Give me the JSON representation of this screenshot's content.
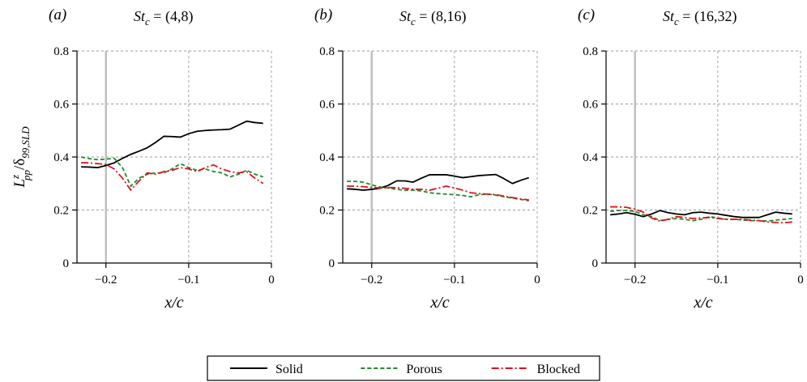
{
  "ylabel": "L^z_pp/δ99,SLD",
  "chart_data": [
    {
      "type": "line",
      "panel_label": "(a)",
      "title": {
        "prefix": "St",
        "sub": "c",
        "suffix": " = (4,8)"
      },
      "xlabel": "x/c",
      "xlim": [
        -0.235,
        0
      ],
      "ylim": [
        0,
        0.8
      ],
      "xticks": [
        -0.2,
        -0.1,
        0
      ],
      "xtick_labels": [
        "−0.2",
        "−0.1",
        "0"
      ],
      "yticks": [
        0,
        0.2,
        0.4,
        0.6,
        0.8
      ],
      "ytick_labels": [
        "0",
        "0.2",
        "0.4",
        "0.6",
        "0.8"
      ],
      "grid": true,
      "vertical_marker_x": -0.2,
      "series": [
        {
          "name": "Solid",
          "color": "#000000",
          "dash": "solid",
          "x": [
            -0.23,
            -0.22,
            -0.21,
            -0.2,
            -0.19,
            -0.18,
            -0.17,
            -0.16,
            -0.15,
            -0.14,
            -0.13,
            -0.12,
            -0.11,
            -0.1,
            -0.09,
            -0.08,
            -0.07,
            -0.06,
            -0.05,
            -0.04,
            -0.03,
            -0.02,
            -0.01
          ],
          "y": [
            0.363,
            0.362,
            0.36,
            0.368,
            0.378,
            0.395,
            0.41,
            0.422,
            0.435,
            0.455,
            0.478,
            0.477,
            0.475,
            0.488,
            0.497,
            0.5,
            0.502,
            0.503,
            0.505,
            0.52,
            0.535,
            0.53,
            0.527
          ]
        },
        {
          "name": "Porous",
          "color": "#1f8a2b",
          "dash": "dashed",
          "x": [
            -0.23,
            -0.22,
            -0.21,
            -0.2,
            -0.19,
            -0.18,
            -0.17,
            -0.16,
            -0.15,
            -0.14,
            -0.13,
            -0.12,
            -0.11,
            -0.1,
            -0.09,
            -0.08,
            -0.07,
            -0.06,
            -0.05,
            -0.04,
            -0.03,
            -0.02,
            -0.01
          ],
          "y": [
            0.4,
            0.394,
            0.39,
            0.392,
            0.395,
            0.36,
            0.29,
            0.32,
            0.335,
            0.34,
            0.34,
            0.355,
            0.375,
            0.36,
            0.35,
            0.355,
            0.345,
            0.34,
            0.325,
            0.335,
            0.35,
            0.335,
            0.325
          ]
        },
        {
          "name": "Blocked",
          "color": "#e0121b",
          "dash": "dashdot",
          "x": [
            -0.23,
            -0.22,
            -0.21,
            -0.2,
            -0.19,
            -0.18,
            -0.17,
            -0.16,
            -0.15,
            -0.14,
            -0.13,
            -0.12,
            -0.11,
            -0.1,
            -0.09,
            -0.08,
            -0.07,
            -0.06,
            -0.05,
            -0.04,
            -0.03,
            -0.02,
            -0.01
          ],
          "y": [
            0.378,
            0.378,
            0.375,
            0.372,
            0.355,
            0.32,
            0.275,
            0.31,
            0.34,
            0.335,
            0.345,
            0.35,
            0.36,
            0.355,
            0.345,
            0.36,
            0.37,
            0.355,
            0.345,
            0.34,
            0.345,
            0.32,
            0.3
          ]
        }
      ]
    },
    {
      "type": "line",
      "panel_label": "(b)",
      "title": {
        "prefix": "St",
        "sub": "c",
        "suffix": " = (8,16)"
      },
      "xlabel": "x/c",
      "xlim": [
        -0.235,
        0
      ],
      "ylim": [
        0,
        0.8
      ],
      "xticks": [
        -0.2,
        -0.1,
        0
      ],
      "xtick_labels": [
        "−0.2",
        "−0.1",
        "0"
      ],
      "yticks": [
        0,
        0.2,
        0.4,
        0.6,
        0.8
      ],
      "ytick_labels": [
        "0",
        "0.2",
        "0.4",
        "0.6",
        "0.8"
      ],
      "grid": true,
      "vertical_marker_x": -0.2,
      "series": [
        {
          "name": "Solid",
          "color": "#000000",
          "dash": "solid",
          "x": [
            -0.23,
            -0.22,
            -0.21,
            -0.2,
            -0.19,
            -0.18,
            -0.17,
            -0.16,
            -0.15,
            -0.14,
            -0.13,
            -0.12,
            -0.11,
            -0.1,
            -0.09,
            -0.08,
            -0.07,
            -0.06,
            -0.05,
            -0.04,
            -0.03,
            -0.02,
            -0.01
          ],
          "y": [
            0.28,
            0.278,
            0.275,
            0.278,
            0.282,
            0.293,
            0.31,
            0.31,
            0.305,
            0.32,
            0.333,
            0.333,
            0.333,
            0.328,
            0.322,
            0.326,
            0.33,
            0.332,
            0.334,
            0.318,
            0.3,
            0.312,
            0.322
          ]
        },
        {
          "name": "Porous",
          "color": "#1f8a2b",
          "dash": "dashed",
          "x": [
            -0.23,
            -0.22,
            -0.21,
            -0.2,
            -0.19,
            -0.18,
            -0.17,
            -0.16,
            -0.15,
            -0.14,
            -0.13,
            -0.12,
            -0.11,
            -0.1,
            -0.09,
            -0.08,
            -0.07,
            -0.06,
            -0.05,
            -0.04,
            -0.03,
            -0.02,
            -0.01
          ],
          "y": [
            0.308,
            0.308,
            0.305,
            0.295,
            0.287,
            0.283,
            0.278,
            0.275,
            0.275,
            0.272,
            0.265,
            0.262,
            0.26,
            0.258,
            0.255,
            0.25,
            0.258,
            0.26,
            0.256,
            0.25,
            0.245,
            0.24,
            0.235
          ]
        },
        {
          "name": "Blocked",
          "color": "#e0121b",
          "dash": "dashdot",
          "x": [
            -0.23,
            -0.22,
            -0.21,
            -0.2,
            -0.19,
            -0.18,
            -0.17,
            -0.16,
            -0.15,
            -0.14,
            -0.13,
            -0.12,
            -0.11,
            -0.1,
            -0.09,
            -0.08,
            -0.07,
            -0.06,
            -0.05,
            -0.04,
            -0.03,
            -0.02,
            -0.01
          ],
          "y": [
            0.29,
            0.29,
            0.288,
            0.285,
            0.283,
            0.285,
            0.284,
            0.282,
            0.278,
            0.278,
            0.275,
            0.282,
            0.29,
            0.283,
            0.275,
            0.265,
            0.262,
            0.26,
            0.258,
            0.252,
            0.247,
            0.242,
            0.238
          ]
        }
      ]
    },
    {
      "type": "line",
      "panel_label": "(c)",
      "title": {
        "prefix": "St",
        "sub": "c",
        "suffix": " = (16,32)"
      },
      "xlabel": "x/c",
      "xlim": [
        -0.235,
        0
      ],
      "ylim": [
        0,
        0.8
      ],
      "xticks": [
        -0.2,
        -0.1,
        0
      ],
      "xtick_labels": [
        "−0.2",
        "−0.1",
        "0"
      ],
      "yticks": [
        0,
        0.2,
        0.4,
        0.6,
        0.8
      ],
      "ytick_labels": [
        "0",
        "0.2",
        "0.4",
        "0.6",
        "0.8"
      ],
      "grid": true,
      "vertical_marker_x": -0.2,
      "series": [
        {
          "name": "Solid",
          "color": "#000000",
          "dash": "solid",
          "x": [
            -0.23,
            -0.22,
            -0.21,
            -0.2,
            -0.19,
            -0.18,
            -0.17,
            -0.16,
            -0.15,
            -0.14,
            -0.13,
            -0.12,
            -0.11,
            -0.1,
            -0.09,
            -0.08,
            -0.07,
            -0.06,
            -0.05,
            -0.04,
            -0.03,
            -0.02,
            -0.01
          ],
          "y": [
            0.182,
            0.185,
            0.19,
            0.184,
            0.175,
            0.185,
            0.198,
            0.19,
            0.185,
            0.182,
            0.19,
            0.192,
            0.188,
            0.185,
            0.18,
            0.175,
            0.172,
            0.172,
            0.172,
            0.182,
            0.192,
            0.188,
            0.185
          ]
        },
        {
          "name": "Porous",
          "color": "#1f8a2b",
          "dash": "dashed",
          "x": [
            -0.23,
            -0.22,
            -0.21,
            -0.2,
            -0.19,
            -0.18,
            -0.17,
            -0.16,
            -0.15,
            -0.14,
            -0.13,
            -0.12,
            -0.11,
            -0.1,
            -0.09,
            -0.08,
            -0.07,
            -0.06,
            -0.05,
            -0.04,
            -0.03,
            -0.02,
            -0.01
          ],
          "y": [
            0.195,
            0.198,
            0.198,
            0.195,
            0.182,
            0.175,
            0.16,
            0.165,
            0.168,
            0.165,
            0.16,
            0.165,
            0.175,
            0.17,
            0.165,
            0.165,
            0.162,
            0.16,
            0.16,
            0.158,
            0.162,
            0.165,
            0.168
          ]
        },
        {
          "name": "Blocked",
          "color": "#e0121b",
          "dash": "dashdot",
          "x": [
            -0.23,
            -0.22,
            -0.21,
            -0.2,
            -0.19,
            -0.18,
            -0.17,
            -0.16,
            -0.15,
            -0.14,
            -0.13,
            -0.12,
            -0.11,
            -0.1,
            -0.09,
            -0.08,
            -0.07,
            -0.06,
            -0.05,
            -0.04,
            -0.03,
            -0.02,
            -0.01
          ],
          "y": [
            0.212,
            0.212,
            0.21,
            0.203,
            0.192,
            0.17,
            0.158,
            0.165,
            0.175,
            0.172,
            0.168,
            0.17,
            0.172,
            0.168,
            0.165,
            0.165,
            0.165,
            0.162,
            0.16,
            0.155,
            0.153,
            0.152,
            0.155
          ]
        }
      ]
    }
  ],
  "legend": {
    "entries": [
      {
        "label": "Solid",
        "color": "#000000",
        "dash": "solid"
      },
      {
        "label": "Porous",
        "color": "#1f8a2b",
        "dash": "dashed"
      },
      {
        "label": "Blocked",
        "color": "#e0121b",
        "dash": "dashdot"
      }
    ]
  },
  "style": {
    "grid_color": "#9a9a9a",
    "marker_color": "#c0c0c0"
  }
}
